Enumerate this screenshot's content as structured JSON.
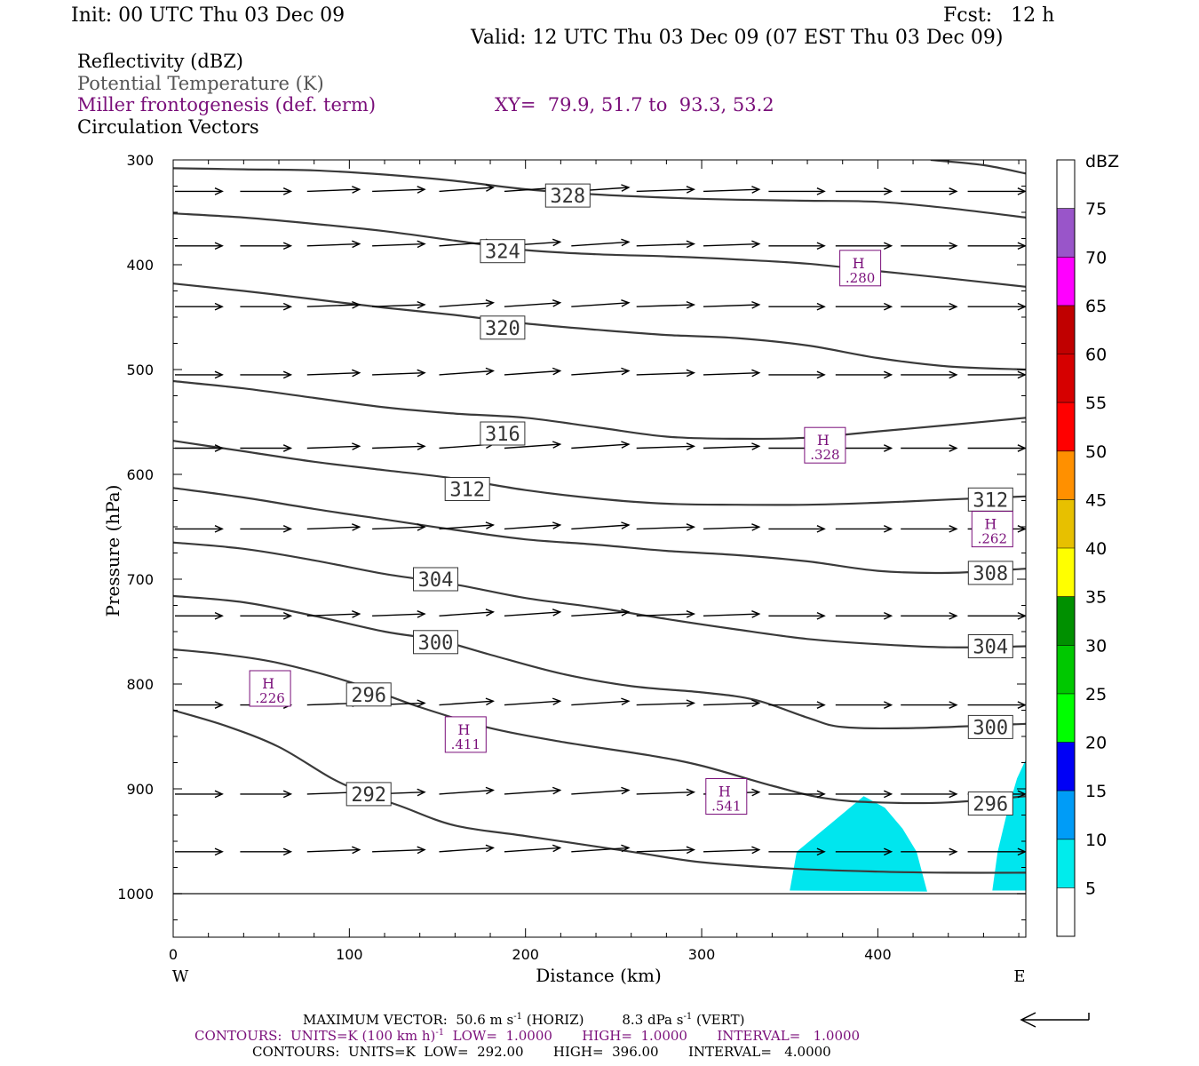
{
  "header": {
    "init": "Init: 00 UTC Thu 03 Dec 09",
    "fcst": "Fcst:   12 h",
    "valid": "Valid: 12 UTC Thu 03 Dec 09 (07 EST Thu 03 Dec 09)"
  },
  "fields": {
    "reflectivity": "Reflectivity (dBZ)",
    "theta": "Potential Temperature (K)",
    "miller": "Miller frontogenesis (def. term)",
    "xy": "XY=  79.9, 51.7 to  93.3, 53.2",
    "circulation": "Circulation Vectors"
  },
  "footer": {
    "max_vector_prefix": "MAXIMUM VECTOR:  50.6 m s",
    "max_vector_sup1": "-1",
    "max_vector_mid": " (HORIZ)         8.3 dPa s",
    "max_vector_sup2": "-1",
    "max_vector_suffix": " (VERT)",
    "contours1_prefix": "CONTOURS:  UNITS=K (100 km h)",
    "contours1_sup": "-1",
    "contours1_suffix": "  LOW=  1.0000       HIGH=  1.0000       INTERVAL=   1.0000",
    "contours2": "CONTOURS:  UNITS=K  LOW=  292.00       HIGH=  396.00       INTERVAL=   4.0000"
  },
  "colors": {
    "theta_line": "#3a3a3a",
    "purple": "#7a0f7a",
    "cyan_fill": "#00e6ee"
  },
  "chart_data": {
    "type": "cross-section",
    "xlabel": "Distance (km)",
    "ylabel": "Pressure (hPa)",
    "xlim": [
      0,
      484
    ],
    "ylim": [
      1040,
      300
    ],
    "x_ticks": [
      0,
      100,
      200,
      300,
      400
    ],
    "y_ticks": [
      300,
      400,
      500,
      600,
      700,
      800,
      900,
      1000
    ],
    "west_label": "W",
    "east_label": "E",
    "colorbar": {
      "title": "dBZ",
      "levels": [
        5,
        10,
        15,
        20,
        25,
        30,
        35,
        40,
        45,
        50,
        55,
        60,
        65,
        70,
        75
      ],
      "colors": [
        "#ffffff",
        "#00ecec",
        "#009cf7",
        "#0000f6",
        "#00ff00",
        "#00c800",
        "#009000",
        "#ffff00",
        "#e7c000",
        "#ff9000",
        "#ff0000",
        "#d60000",
        "#c00000",
        "#ff00ff",
        "#9955c9",
        "#ffffff"
      ]
    },
    "reflectivity_areas": [
      {
        "dbz": 5,
        "points": [
          [
            350,
            997
          ],
          [
            354,
            960
          ],
          [
            372,
            935
          ],
          [
            392,
            907
          ],
          [
            404,
            918
          ],
          [
            414,
            938
          ],
          [
            422,
            960
          ],
          [
            428,
            998
          ]
        ]
      },
      {
        "dbz": 5,
        "points": [
          [
            465,
            997
          ],
          [
            468,
            960
          ],
          [
            473,
            925
          ],
          [
            479,
            890
          ],
          [
            484,
            872
          ],
          [
            484,
            997
          ]
        ]
      }
    ],
    "theta_contours": [
      {
        "value": 292,
        "points": [
          [
            0,
            825
          ],
          [
            30,
            840
          ],
          [
            60,
            860
          ],
          [
            90,
            890
          ],
          [
            110,
            905
          ],
          [
            130,
            917
          ],
          [
            160,
            935
          ],
          [
            200,
            945
          ],
          [
            260,
            960
          ],
          [
            300,
            970
          ],
          [
            350,
            976
          ],
          [
            400,
            979
          ],
          [
            440,
            980
          ],
          [
            484,
            980
          ]
        ]
      },
      {
        "value": 296,
        "points": [
          [
            0,
            767
          ],
          [
            30,
            772
          ],
          [
            60,
            780
          ],
          [
            100,
            798
          ],
          [
            140,
            822
          ],
          [
            180,
            842
          ],
          [
            220,
            855
          ],
          [
            270,
            868
          ],
          [
            300,
            878
          ],
          [
            340,
            897
          ],
          [
            370,
            909
          ],
          [
            400,
            913
          ],
          [
            440,
            913
          ],
          [
            484,
            907
          ]
        ]
      },
      {
        "value": 300,
        "points": [
          [
            0,
            716
          ],
          [
            40,
            722
          ],
          [
            80,
            735
          ],
          [
            120,
            750
          ],
          [
            150,
            758
          ],
          [
            180,
            772
          ],
          [
            220,
            790
          ],
          [
            260,
            802
          ],
          [
            300,
            808
          ],
          [
            330,
            815
          ],
          [
            360,
            832
          ],
          [
            380,
            841
          ],
          [
            420,
            842
          ],
          [
            484,
            838
          ]
        ]
      },
      {
        "value": 304,
        "points": [
          [
            0,
            665
          ],
          [
            40,
            671
          ],
          [
            80,
            682
          ],
          [
            120,
            695
          ],
          [
            160,
            705
          ],
          [
            200,
            718
          ],
          [
            240,
            727
          ],
          [
            280,
            738
          ],
          [
            320,
            748
          ],
          [
            360,
            757
          ],
          [
            400,
            762
          ],
          [
            440,
            765
          ],
          [
            484,
            764
          ]
        ]
      },
      {
        "value": 308,
        "points": [
          [
            0,
            613
          ],
          [
            40,
            622
          ],
          [
            80,
            633
          ],
          [
            120,
            643
          ],
          [
            160,
            653
          ],
          [
            200,
            662
          ],
          [
            240,
            667
          ],
          [
            280,
            673
          ],
          [
            320,
            677
          ],
          [
            360,
            683
          ],
          [
            400,
            692
          ],
          [
            440,
            694
          ],
          [
            484,
            690
          ]
        ]
      },
      {
        "value": 312,
        "points": [
          [
            0,
            568
          ],
          [
            40,
            578
          ],
          [
            80,
            588
          ],
          [
            120,
            596
          ],
          [
            160,
            604
          ],
          [
            200,
            615
          ],
          [
            240,
            623
          ],
          [
            280,
            628
          ],
          [
            320,
            629
          ],
          [
            360,
            629
          ],
          [
            400,
            627
          ],
          [
            440,
            624
          ],
          [
            484,
            621
          ]
        ]
      },
      {
        "value": 316,
        "points": [
          [
            0,
            511
          ],
          [
            40,
            518
          ],
          [
            80,
            527
          ],
          [
            120,
            536
          ],
          [
            160,
            542
          ],
          [
            200,
            546
          ],
          [
            240,
            555
          ],
          [
            280,
            564
          ],
          [
            320,
            566
          ],
          [
            360,
            565
          ],
          [
            400,
            559
          ],
          [
            440,
            553
          ],
          [
            484,
            546
          ]
        ]
      },
      {
        "value": 320,
        "points": [
          [
            0,
            418
          ],
          [
            40,
            425
          ],
          [
            80,
            433
          ],
          [
            120,
            441
          ],
          [
            160,
            448
          ],
          [
            200,
            456
          ],
          [
            240,
            462
          ],
          [
            280,
            467
          ],
          [
            320,
            470
          ],
          [
            360,
            477
          ],
          [
            400,
            489
          ],
          [
            440,
            497
          ],
          [
            484,
            500
          ]
        ]
      },
      {
        "value": 324,
        "points": [
          [
            0,
            351
          ],
          [
            40,
            355
          ],
          [
            80,
            361
          ],
          [
            120,
            368
          ],
          [
            160,
            377
          ],
          [
            200,
            386
          ],
          [
            240,
            390
          ],
          [
            280,
            392
          ],
          [
            320,
            395
          ],
          [
            360,
            399
          ],
          [
            400,
            406
          ],
          [
            440,
            413
          ],
          [
            484,
            421
          ]
        ]
      },
      {
        "value": 328,
        "points": [
          [
            0,
            308
          ],
          [
            40,
            309
          ],
          [
            80,
            310
          ],
          [
            120,
            314
          ],
          [
            160,
            320
          ],
          [
            200,
            328
          ],
          [
            240,
            333
          ],
          [
            280,
            336
          ],
          [
            320,
            338
          ],
          [
            360,
            339
          ],
          [
            400,
            340
          ],
          [
            440,
            346
          ],
          [
            484,
            355
          ]
        ]
      },
      {
        "value": 332,
        "points": [
          [
            430,
            300
          ],
          [
            460,
            305
          ],
          [
            484,
            313
          ]
        ]
      }
    ],
    "theta_labels": [
      {
        "text": "328",
        "x": 224,
        "p": 334
      },
      {
        "text": "324",
        "x": 187,
        "p": 387
      },
      {
        "text": "320",
        "x": 187,
        "p": 460
      },
      {
        "text": "316",
        "x": 187,
        "p": 561
      },
      {
        "text": "312",
        "x": 167,
        "p": 614
      },
      {
        "text": "312",
        "x": 464,
        "p": 624
      },
      {
        "text": "308",
        "x": 464,
        "p": 694
      },
      {
        "text": "304",
        "x": 149,
        "p": 700
      },
      {
        "text": "304",
        "x": 464,
        "p": 764
      },
      {
        "text": "300",
        "x": 149,
        "p": 760
      },
      {
        "text": "300",
        "x": 464,
        "p": 841
      },
      {
        "text": "296",
        "x": 111,
        "p": 810
      },
      {
        "text": "296",
        "x": 464,
        "p": 914
      },
      {
        "text": "292",
        "x": 111,
        "p": 905
      }
    ],
    "frontogenesis_maxima": [
      {
        "label": "H",
        "value": ".280",
        "x": 390,
        "p": 421
      },
      {
        "label": "H",
        "value": ".328",
        "x": 370,
        "p": 590
      },
      {
        "label": "H",
        "value": ".262",
        "x": 465,
        "p": 670
      },
      {
        "label": "H",
        "value": ".226",
        "x": 55,
        "p": 822
      },
      {
        "label": "H",
        "value": ".411",
        "x": 166,
        "p": 866
      },
      {
        "label": "H",
        "value": ".541",
        "x": 314,
        "p": 925
      }
    ],
    "vector_rows": [
      {
        "p": 330,
        "x": [
          0,
          37,
          75,
          112,
          150,
          187,
          225,
          262,
          300,
          337,
          375,
          412,
          450
        ],
        "u": [
          28,
          30,
          31,
          31,
          32,
          33,
          34,
          34,
          33,
          33,
          33,
          33,
          34
        ],
        "w": [
          0,
          0,
          -1,
          -1,
          -2,
          -2,
          -2,
          -1,
          -1,
          0,
          0,
          0,
          0
        ]
      },
      {
        "p": 382,
        "x": [
          0,
          37,
          75,
          112,
          150,
          187,
          225,
          262,
          300,
          337,
          375,
          412,
          450
        ],
        "u": [
          28,
          30,
          31,
          31,
          32,
          33,
          34,
          34,
          33,
          33,
          33,
          33,
          34
        ],
        "w": [
          0,
          0,
          -1,
          -1,
          -2,
          -2,
          -2,
          -1,
          -1,
          0,
          0,
          0,
          0
        ]
      },
      {
        "p": 440,
        "x": [
          0,
          37,
          75,
          112,
          150,
          187,
          225,
          262,
          300,
          337,
          375,
          412,
          450
        ],
        "u": [
          28,
          30,
          31,
          31,
          32,
          33,
          34,
          34,
          33,
          33,
          33,
          33,
          34
        ],
        "w": [
          0,
          0,
          -1,
          -1,
          -2,
          -2,
          -2,
          -1,
          -1,
          0,
          0,
          0,
          0
        ]
      },
      {
        "p": 505,
        "x": [
          0,
          37,
          75,
          112,
          150,
          187,
          225,
          262,
          300,
          337,
          375,
          412,
          450
        ],
        "u": [
          28,
          30,
          31,
          31,
          32,
          33,
          34,
          34,
          33,
          33,
          33,
          33,
          34
        ],
        "w": [
          0,
          0,
          -1,
          -1,
          -2,
          -2,
          -2,
          -1,
          -1,
          0,
          0,
          0,
          0
        ]
      },
      {
        "p": 575,
        "x": [
          0,
          37,
          75,
          112,
          150,
          187,
          225,
          262,
          300,
          337,
          375,
          412,
          450
        ],
        "u": [
          28,
          30,
          31,
          31,
          32,
          33,
          34,
          34,
          33,
          33,
          33,
          33,
          34
        ],
        "w": [
          0,
          0,
          -1,
          -1,
          -2,
          -2,
          -2,
          -1,
          -1,
          0,
          0,
          0,
          0
        ]
      },
      {
        "p": 652,
        "x": [
          0,
          37,
          75,
          112,
          150,
          187,
          225,
          262,
          300,
          337,
          375,
          412,
          450
        ],
        "u": [
          28,
          30,
          31,
          31,
          32,
          33,
          34,
          34,
          33,
          33,
          33,
          33,
          34
        ],
        "w": [
          0,
          0,
          -1,
          -1,
          -2,
          -2,
          -2,
          -1,
          -1,
          0,
          0,
          0,
          0
        ]
      },
      {
        "p": 735,
        "x": [
          0,
          37,
          75,
          112,
          150,
          187,
          225,
          262,
          300,
          337,
          375,
          412,
          450
        ],
        "u": [
          28,
          30,
          31,
          31,
          32,
          33,
          34,
          34,
          33,
          33,
          33,
          33,
          34
        ],
        "w": [
          0,
          0,
          -1,
          -1,
          -2,
          -2,
          -2,
          -1,
          -1,
          0,
          0,
          0,
          0
        ]
      },
      {
        "p": 820,
        "x": [
          0,
          37,
          75,
          112,
          150,
          187,
          225,
          262,
          300,
          337,
          375,
          412,
          450
        ],
        "u": [
          28,
          30,
          31,
          31,
          32,
          33,
          34,
          34,
          33,
          33,
          33,
          33,
          34
        ],
        "w": [
          0,
          0,
          -1,
          -1,
          -2,
          -2,
          -2,
          -1,
          -1,
          0,
          0,
          0,
          0
        ]
      },
      {
        "p": 905,
        "x": [
          0,
          37,
          75,
          112,
          150,
          187,
          225,
          262,
          300,
          337,
          375,
          412,
          450
        ],
        "u": [
          28,
          30,
          31,
          31,
          32,
          33,
          34,
          34,
          33,
          33,
          33,
          33,
          34
        ],
        "w": [
          0,
          0,
          -1,
          -1,
          -2,
          -2,
          -2,
          -1,
          -1,
          0,
          0,
          0,
          0
        ]
      },
      {
        "p": 960,
        "x": [
          0,
          37,
          75,
          112,
          150,
          187,
          225,
          262,
          300,
          337,
          375,
          412,
          450
        ],
        "u": [
          28,
          30,
          31,
          31,
          32,
          33,
          34,
          34,
          33,
          33,
          33,
          33,
          34
        ],
        "w": [
          0,
          0,
          -1,
          -1,
          -2,
          -2,
          -2,
          -1,
          -1,
          0,
          0,
          0,
          0
        ]
      }
    ]
  }
}
